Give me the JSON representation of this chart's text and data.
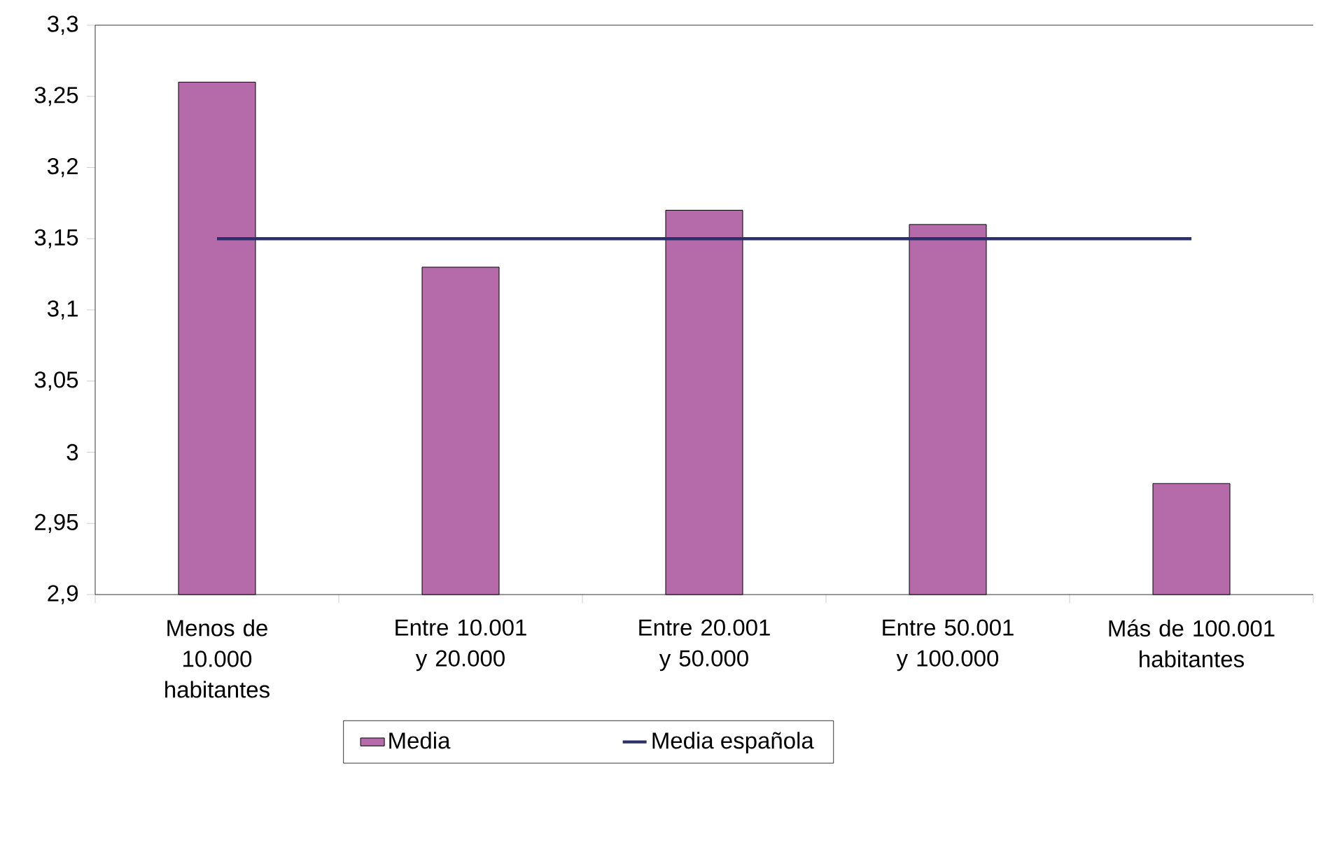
{
  "chart_data": {
    "type": "bar",
    "categories": [
      "Menos de 10.000 habitantes",
      "Entre 10.001 y 20.000",
      "Entre 20.001 y 50.000",
      "Entre 50.001 y 100.000",
      "Más de 100.001 habitantes"
    ],
    "series": [
      {
        "name": "Media",
        "color": "#b56aa9",
        "values": [
          3.26,
          3.13,
          3.17,
          3.16,
          2.978
        ]
      },
      {
        "name": "Media española",
        "type": "line",
        "color": "#2b2f6b",
        "values": [
          3.15,
          3.15,
          3.15,
          3.15,
          3.15
        ]
      }
    ],
    "ylim": [
      2.9,
      3.3
    ],
    "yticks": [
      {
        "value": 2.9,
        "label": "2,9"
      },
      {
        "value": 2.95,
        "label": "2,95"
      },
      {
        "value": 3,
        "label": "3"
      },
      {
        "value": 3.05,
        "label": "3,05"
      },
      {
        "value": 3.1,
        "label": "3,1"
      },
      {
        "value": 3.15,
        "label": "3,15"
      },
      {
        "value": 3.2,
        "label": "3,2"
      },
      {
        "value": 3.25,
        "label": "3,25"
      },
      {
        "value": 3.3,
        "label": "3,3"
      }
    ],
    "legend": "bottom",
    "grid": false,
    "marker": "none"
  }
}
